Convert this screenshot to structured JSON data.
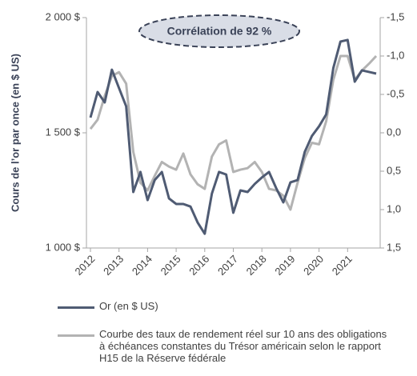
{
  "chart_data": {
    "type": "line",
    "y_label": "Cours de l’or par once (en $ US)",
    "annotation": "Corrélation de 92 %",
    "x": [
      2012,
      2012.25,
      2012.5,
      2012.75,
      2013,
      2013.25,
      2013.5,
      2013.75,
      2014,
      2014.25,
      2014.5,
      2014.75,
      2015,
      2015.25,
      2015.5,
      2015.75,
      2016,
      2016.25,
      2016.5,
      2016.75,
      2017,
      2017.25,
      2017.5,
      2017.75,
      2018,
      2018.25,
      2018.5,
      2018.75,
      2019,
      2019.25,
      2019.5,
      2019.75,
      2020,
      2020.25,
      2020.5,
      2020.75,
      2021,
      2021.25,
      2021.5,
      2021.75,
      2022
    ],
    "xlim": [
      2011.86,
      2022.14
    ],
    "xticks": [
      2012,
      2013,
      2014,
      2015,
      2016,
      2017,
      2018,
      2019,
      2020,
      2021
    ],
    "ylim": [
      1000,
      2000
    ],
    "yticks": [
      {
        "value": 1000,
        "label": "1 000 $"
      },
      {
        "value": 1500,
        "label": "1 500 $"
      },
      {
        "value": 2000,
        "label": "2 000 $"
      }
    ],
    "y2lim": [
      1.5,
      -1.5
    ],
    "y2ticks": [
      {
        "value": -1.5,
        "label": "-1,5"
      },
      {
        "value": -1.0,
        "label": "-1,0"
      },
      {
        "value": -0.5,
        "label": "-0,5"
      },
      {
        "value": 0,
        "label": "0,0"
      },
      {
        "value": 0.5,
        "label": "0,5"
      },
      {
        "value": 1.0,
        "label": "1,0"
      },
      {
        "value": 1.5,
        "label": "1,5"
      }
    ],
    "series": [
      {
        "name": "Or (en $ US)",
        "color": "#4f5b73",
        "values": [
          1566,
          1677,
          1632,
          1774,
          1694,
          1615,
          1243,
          1330,
          1208,
          1295,
          1330,
          1215,
          1191,
          1191,
          1180,
          1111,
          1062,
          1236,
          1330,
          1319,
          1153,
          1250,
          1243,
          1278,
          1306,
          1330,
          1260,
          1198,
          1285,
          1295,
          1417,
          1486,
          1528,
          1580,
          1781,
          1896,
          1903,
          1722,
          1771,
          1764,
          1757
        ]
      },
      {
        "name": "Courbe des taux de rendement réel sur 10 ans des obligations à échéances constantes du Trésor américain selon le rapport H15 de la Réserve fédérale",
        "color": "#b3b3b3",
        "axis": "y2",
        "values": [
          -0.05,
          -0.17,
          -0.48,
          -0.74,
          -0.79,
          -0.64,
          0.25,
          0.65,
          0.75,
          0.56,
          0.38,
          0.44,
          0.48,
          0.27,
          0.54,
          0.67,
          0.73,
          0.31,
          0.15,
          0.1,
          0.51,
          0.48,
          0.46,
          0.38,
          0.51,
          0.73,
          0.75,
          0.82,
          1.0,
          0.65,
          0.33,
          0.13,
          0.15,
          -0.15,
          -0.69,
          -1.0,
          -1.0,
          -0.69,
          -0.81,
          -0.9,
          -1.0
        ]
      }
    ]
  }
}
